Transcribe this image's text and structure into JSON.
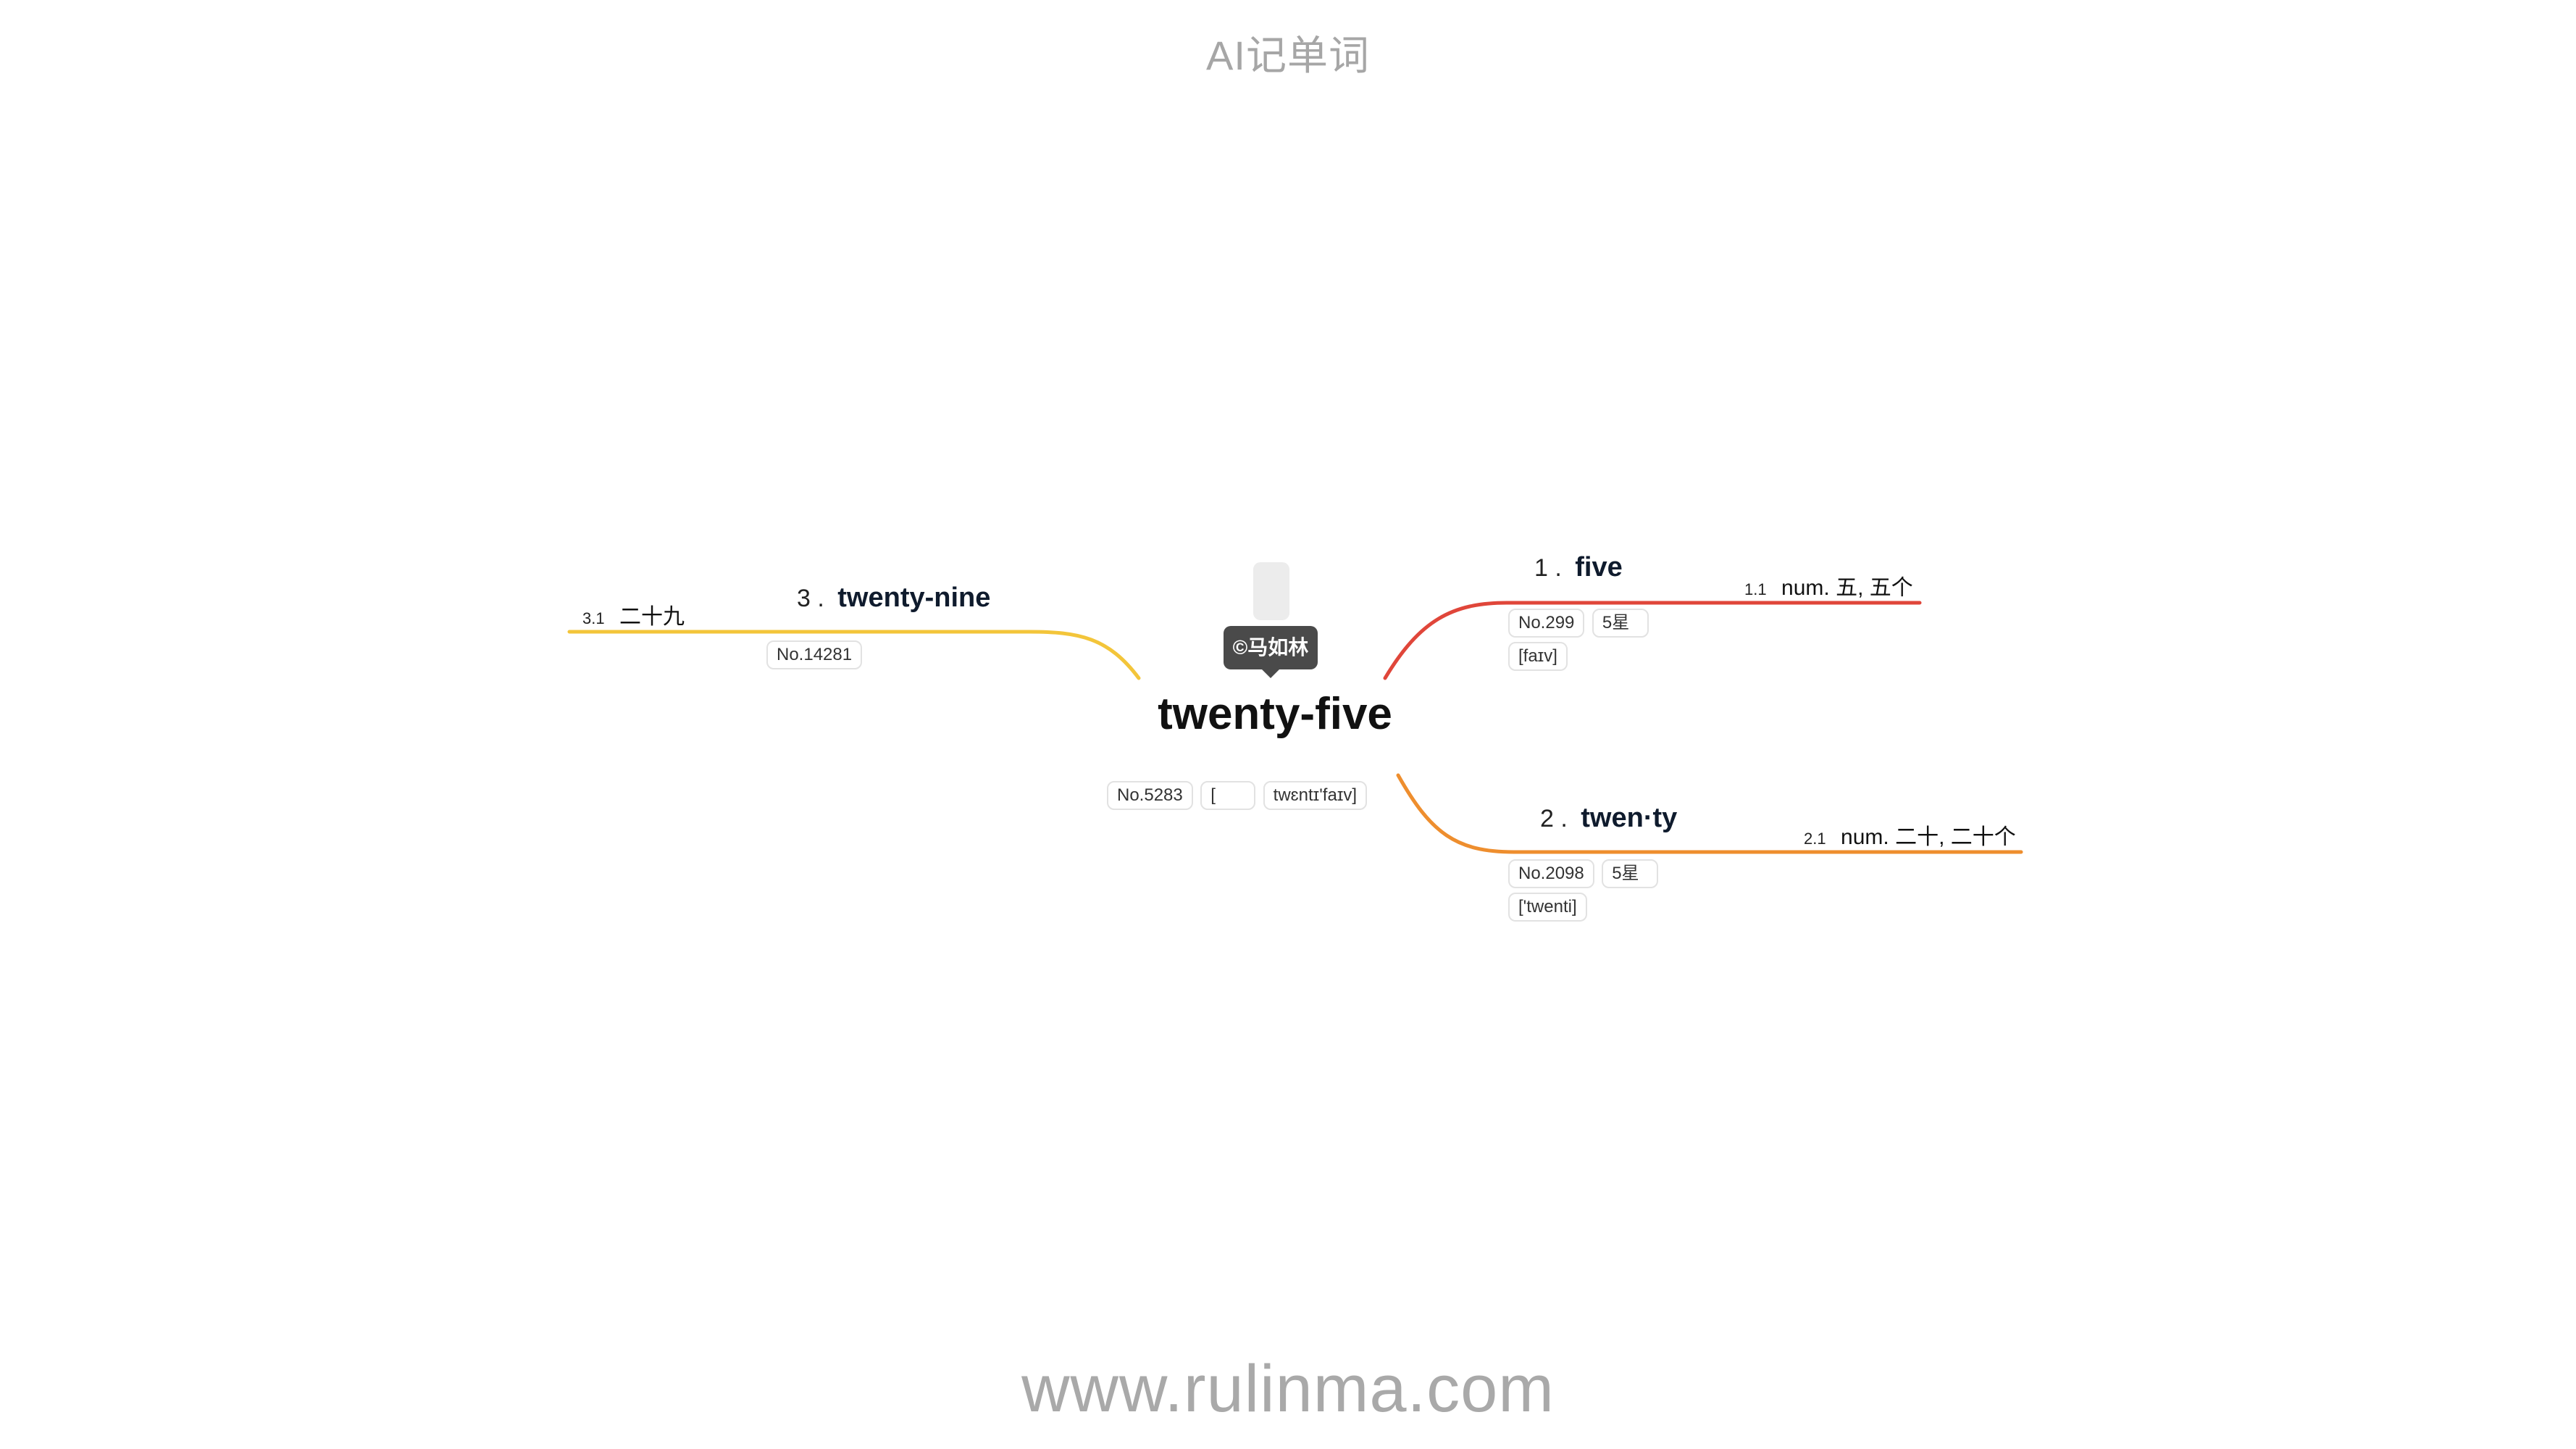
{
  "app_title": "AI记单词",
  "footer": "www.rulinma.com",
  "watermark": "©马如林",
  "root": {
    "word": "twenty-five",
    "tags": [
      "No.5283",
      "[",
      "twɛntɪ'faɪv]"
    ]
  },
  "branches": [
    {
      "number": "1 .",
      "word": "five",
      "color": "#e0463a",
      "tags": [
        "No.299",
        "5星",
        "[faɪv]"
      ],
      "meaning": {
        "number": "1.1",
        "text": "num. 五, 五个"
      }
    },
    {
      "number": "2 .",
      "word": "twen·ty",
      "color": "#ee8e2e",
      "tags": [
        "No.2098",
        "5星",
        "['twenti]"
      ],
      "meaning": {
        "number": "2.1",
        "text": "num. 二十, 二十个"
      }
    },
    {
      "number": "3 .",
      "word": "twenty-nine",
      "color": "#f3c53a",
      "tags": [
        "No.14281"
      ],
      "meaning": {
        "number": "3.1",
        "text": "二十九"
      }
    }
  ]
}
